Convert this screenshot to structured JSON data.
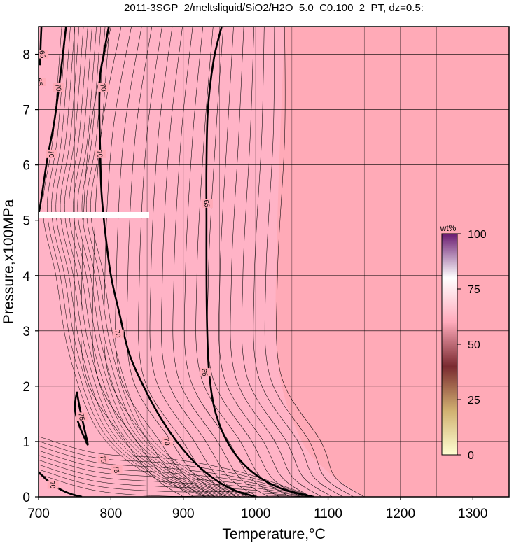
{
  "chart_data": {
    "type": "heatmap",
    "title": "2011-3SGP_2/meltsliquid/SiO2/H2O_5.0_C0.100_2_PT, dz=0.5:",
    "xlabel": "Temperature,°C",
    "ylabel": "Pressure,x100MPa",
    "xlim": [
      700,
      1350
    ],
    "ylim": [
      0,
      8.5
    ],
    "x_ticks": [
      700,
      800,
      900,
      1000,
      1100,
      1200,
      1300
    ],
    "y_ticks": [
      0,
      1,
      2,
      3,
      4,
      5,
      6,
      7,
      8
    ],
    "grid": true,
    "background_color": "#ffaab7",
    "low_t_color": "#ffb3c6",
    "colorbar": {
      "unit": "wt%",
      "range": [
        0,
        100
      ],
      "ticks": [
        0,
        25,
        50,
        75,
        100
      ],
      "stops": [
        "#ffffd2",
        "#d0b070",
        "#7a2a30",
        "#ffaabb",
        "#ffffff",
        "#6a1a70"
      ]
    },
    "contour_labels": [
      {
        "text": "65",
        "t": 706,
        "p": 8.0
      },
      {
        "text": "65",
        "t": 702,
        "p": 7.5
      },
      {
        "text": "70",
        "t": 728,
        "p": 7.4
      },
      {
        "text": "70",
        "t": 790,
        "p": 7.4
      },
      {
        "text": "70",
        "t": 785,
        "p": 6.2
      },
      {
        "text": "70",
        "t": 718,
        "p": 6.2
      },
      {
        "text": "65",
        "t": 933,
        "p": 5.3
      },
      {
        "text": "70",
        "t": 810,
        "p": 2.95
      },
      {
        "text": "65",
        "t": 930,
        "p": 2.25
      },
      {
        "text": "75",
        "t": 760,
        "p": 1.45
      },
      {
        "text": "70",
        "t": 878,
        "p": 1.0
      },
      {
        "text": "75",
        "t": 790,
        "p": 0.68
      },
      {
        "text": "75",
        "t": 808,
        "p": 0.5
      },
      {
        "text": "70",
        "t": 720,
        "p": 0.22
      }
    ],
    "bold_contours": [
      {
        "value": 70,
        "points": [
          [
            700,
            0.45
          ],
          [
            712,
            0.3
          ],
          [
            728,
            0.15
          ],
          [
            745,
            0.05
          ],
          [
            760,
            0.0
          ]
        ]
      },
      {
        "value": 65,
        "points": [
          [
            704,
            8.5
          ],
          [
            703,
            8.2
          ],
          [
            702,
            7.8
          ]
        ]
      },
      {
        "value": 70,
        "points": [
          [
            738,
            8.5
          ],
          [
            730,
            7.6
          ],
          [
            722,
            6.8
          ],
          [
            712,
            6.1
          ],
          [
            704,
            5.4
          ],
          [
            700,
            5.1
          ]
        ]
      },
      {
        "value": 70,
        "points": [
          [
            797,
            8.5
          ],
          [
            790,
            8.0
          ],
          [
            785,
            7.6
          ],
          [
            784,
            7.0
          ],
          [
            785,
            6.3
          ],
          [
            787,
            5.5
          ],
          [
            792,
            4.8
          ],
          [
            800,
            4.0
          ],
          [
            812,
            3.3
          ],
          [
            825,
            2.6
          ],
          [
            845,
            2.0
          ],
          [
            870,
            1.4
          ],
          [
            900,
            0.85
          ],
          [
            930,
            0.45
          ],
          [
            965,
            0.15
          ],
          [
            1000,
            0.0
          ]
        ]
      },
      {
        "value": 65,
        "points": [
          [
            953,
            8.5
          ],
          [
            942,
            7.9
          ],
          [
            934,
            7.0
          ],
          [
            932,
            6.0
          ],
          [
            932,
            5.0
          ],
          [
            932,
            4.0
          ],
          [
            933,
            3.0
          ],
          [
            936,
            2.2
          ],
          [
            945,
            1.5
          ],
          [
            965,
            0.9
          ],
          [
            995,
            0.45
          ],
          [
            1035,
            0.15
          ],
          [
            1080,
            0.0
          ]
        ]
      },
      {
        "value": 75,
        "points": [
          [
            753,
            1.9
          ],
          [
            750,
            1.6
          ],
          [
            756,
            1.3
          ],
          [
            764,
            1.05
          ],
          [
            768,
            0.95
          ],
          [
            763,
            1.25
          ],
          [
            757,
            1.6
          ],
          [
            753,
            1.9
          ]
        ]
      }
    ],
    "thin_contour_count": 18
  }
}
